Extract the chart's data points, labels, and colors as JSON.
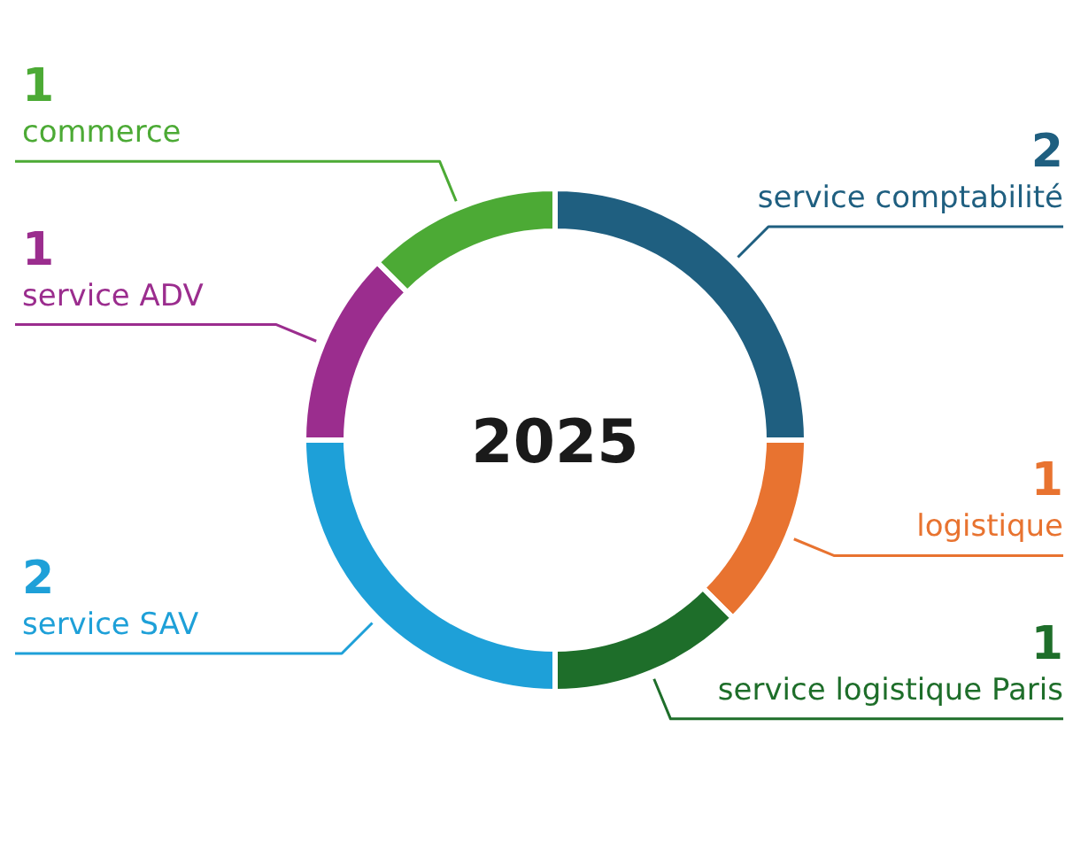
{
  "chart_data": {
    "type": "donut",
    "title": "2025",
    "categories": [
      "service comptabilité",
      "logistique",
      "service logistique Paris",
      "service SAV",
      "service ADV",
      "commerce"
    ],
    "values": [
      2,
      1,
      1,
      2,
      1,
      1
    ],
    "colors": [
      "#1f5f80",
      "#e87330",
      "#1e6e2a",
      "#1ea0d8",
      "#9b2d8e",
      "#4caa35"
    ],
    "data_labels": true
  }
}
